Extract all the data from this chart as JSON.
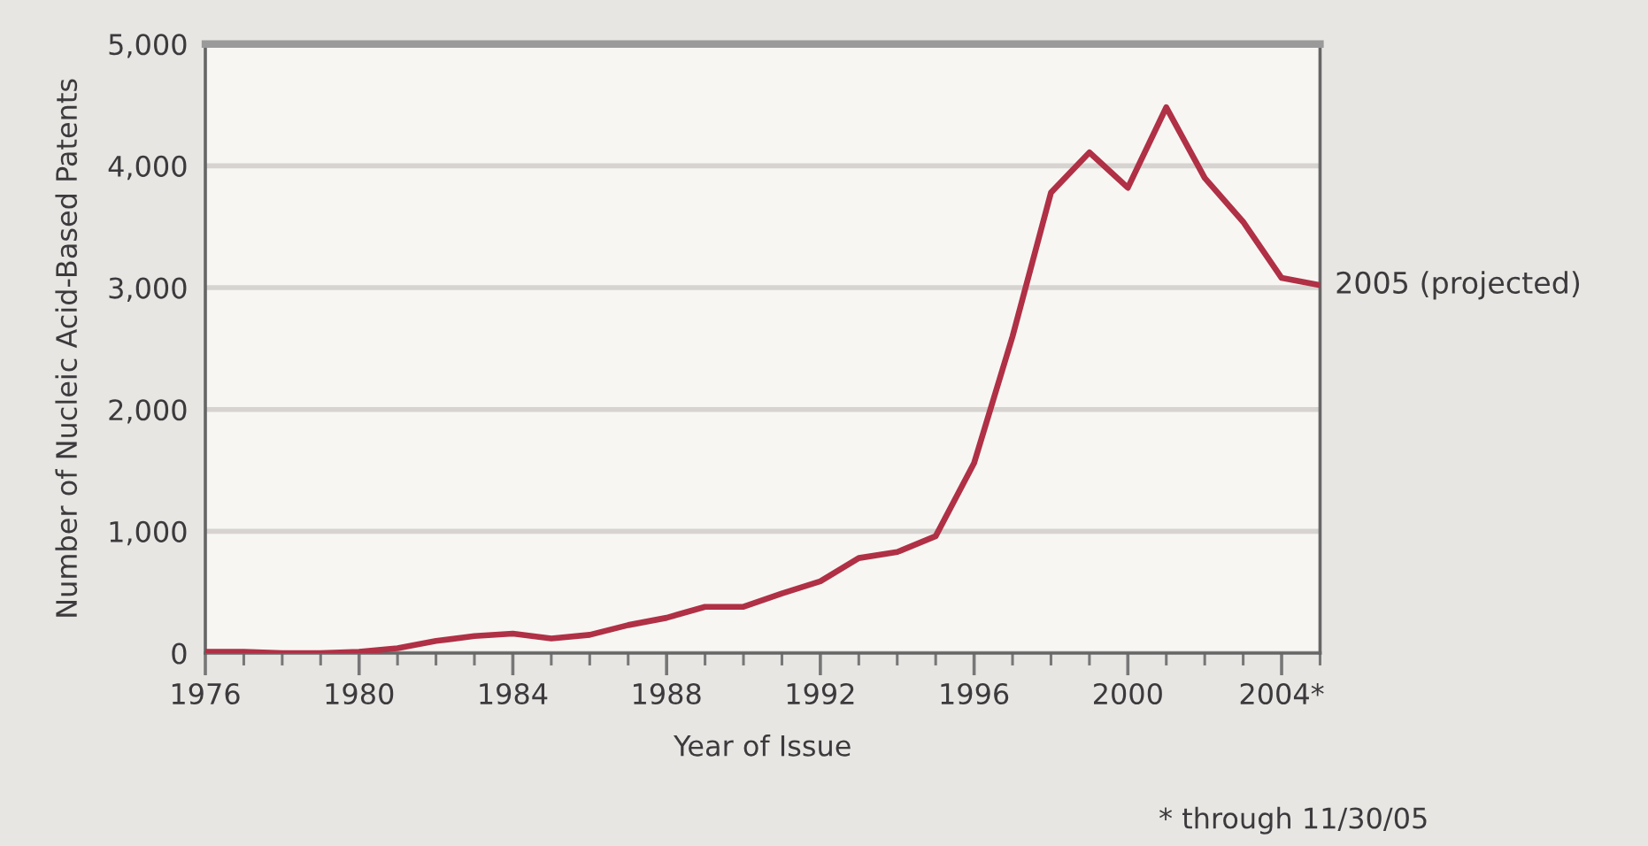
{
  "chart_data": {
    "type": "line",
    "xlabel": "Year of Issue",
    "ylabel": "Number of Nucleic Acid-Based Patents",
    "x": [
      1976,
      1977,
      1978,
      1979,
      1980,
      1981,
      1982,
      1983,
      1984,
      1985,
      1986,
      1987,
      1988,
      1989,
      1990,
      1991,
      1992,
      1993,
      1994,
      1995,
      1996,
      1997,
      1998,
      1999,
      2000,
      2001,
      2002,
      2003,
      2004,
      2005
    ],
    "series": [
      {
        "color": "#b03045",
        "values": [
          10,
          10,
          0,
          0,
          10,
          40,
          100,
          140,
          160,
          120,
          150,
          230,
          290,
          380,
          380,
          490,
          590,
          780,
          830,
          960,
          1560,
          2600,
          3780,
          4110,
          3820,
          4480,
          3900,
          3540,
          3080,
          3020
        ]
      }
    ],
    "xlim": [
      1976,
      2005
    ],
    "xticks": [
      1976,
      {
        "value": 1977,
        "label": null
      },
      {
        "value": 1978,
        "label": null
      },
      {
        "value": 1979,
        "label": null
      },
      1980,
      {
        "value": 1981,
        "label": null
      },
      {
        "value": 1982,
        "label": null
      },
      {
        "value": 1983,
        "label": null
      },
      1984,
      {
        "value": 1985,
        "label": null
      },
      {
        "value": 1986,
        "label": null
      },
      {
        "value": 1987,
        "label": null
      },
      1988,
      {
        "value": 1989,
        "label": null
      },
      {
        "value": 1990,
        "label": null
      },
      {
        "value": 1991,
        "label": null
      },
      1992,
      {
        "value": 1993,
        "label": null
      },
      {
        "value": 1994,
        "label": null
      },
      {
        "value": 1995,
        "label": null
      },
      1996,
      {
        "value": 1997,
        "label": null
      },
      {
        "value": 1998,
        "label": null
      },
      {
        "value": 1999,
        "label": null
      },
      2000,
      {
        "value": 2001,
        "label": null
      },
      {
        "value": 2002,
        "label": null
      },
      {
        "value": 2003,
        "label": null
      },
      {
        "value": 2004,
        "label": "2004*"
      },
      {
        "value": 2005,
        "label": null
      }
    ],
    "ylim": [
      0,
      5000
    ],
    "yticks": [
      {
        "value": 0,
        "label": "0"
      },
      {
        "value": 1000,
        "label": "1,000"
      },
      {
        "value": 2000,
        "label": "2,000"
      },
      {
        "value": 3000,
        "label": "3,000"
      },
      {
        "value": 4000,
        "label": "4,000"
      },
      {
        "value": 5000,
        "label": "5,000"
      }
    ],
    "grid": "y",
    "line_style": "solid",
    "annotations": [
      {
        "text": "2005 (projected)",
        "x": 2005,
        "y": 3020
      },
      "* through 11/30/05"
    ]
  }
}
